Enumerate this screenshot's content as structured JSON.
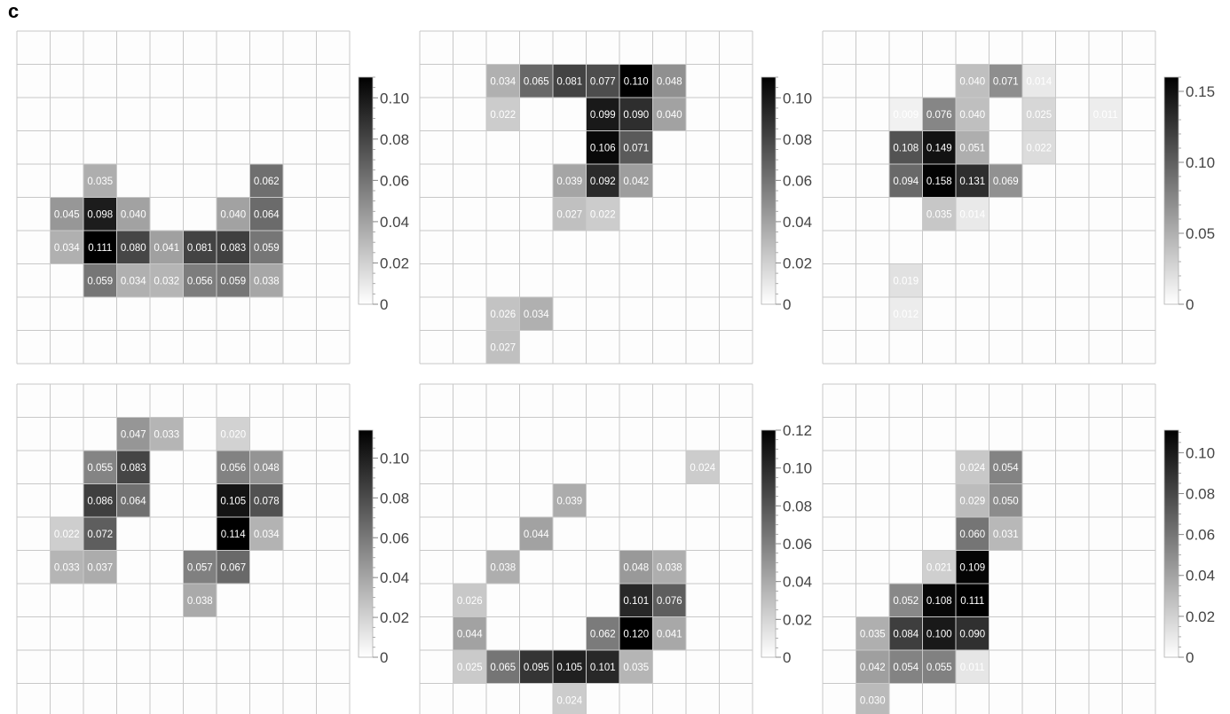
{
  "panel_label": "c",
  "chart_data": [
    {
      "type": "heatmap",
      "grid_size": 10,
      "colorscale": [
        "#ffffff",
        "#000000"
      ],
      "vmax": 0.11,
      "colorbar_ticks": [
        {
          "value": 0.1,
          "label": "0.10"
        },
        {
          "value": 0.08,
          "label": "0.08"
        },
        {
          "value": 0.06,
          "label": "0.06"
        },
        {
          "value": 0.04,
          "label": "0.04"
        },
        {
          "value": 0.02,
          "label": "0.02"
        },
        {
          "value": 0,
          "label": "0"
        }
      ],
      "cells": [
        {
          "row": 4,
          "col": 2,
          "label": "0.035"
        },
        {
          "row": 4,
          "col": 7,
          "label": "0.062"
        },
        {
          "row": 5,
          "col": 1,
          "label": "0.045"
        },
        {
          "row": 5,
          "col": 2,
          "label": "0.098"
        },
        {
          "row": 5,
          "col": 3,
          "label": "0.040"
        },
        {
          "row": 5,
          "col": 6,
          "label": "0.040"
        },
        {
          "row": 5,
          "col": 7,
          "label": "0.064"
        },
        {
          "row": 6,
          "col": 1,
          "label": "0.034"
        },
        {
          "row": 6,
          "col": 2,
          "label": "0.111"
        },
        {
          "row": 6,
          "col": 3,
          "label": "0.080"
        },
        {
          "row": 6,
          "col": 4,
          "label": "0.041"
        },
        {
          "row": 6,
          "col": 5,
          "label": "0.081"
        },
        {
          "row": 6,
          "col": 6,
          "label": "0.083"
        },
        {
          "row": 6,
          "col": 7,
          "label": "0.059"
        },
        {
          "row": 7,
          "col": 2,
          "label": "0.059"
        },
        {
          "row": 7,
          "col": 3,
          "label": "0.034"
        },
        {
          "row": 7,
          "col": 4,
          "label": "0.032"
        },
        {
          "row": 7,
          "col": 5,
          "label": "0.056"
        },
        {
          "row": 7,
          "col": 6,
          "label": "0.059"
        },
        {
          "row": 7,
          "col": 7,
          "label": "0.038"
        }
      ]
    },
    {
      "type": "heatmap",
      "grid_size": 10,
      "colorscale": [
        "#ffffff",
        "#000000"
      ],
      "vmax": 0.11,
      "colorbar_ticks": [
        {
          "value": 0.1,
          "label": "0.10"
        },
        {
          "value": 0.08,
          "label": "0.08"
        },
        {
          "value": 0.06,
          "label": "0.06"
        },
        {
          "value": 0.04,
          "label": "0.04"
        },
        {
          "value": 0.02,
          "label": "0.02"
        },
        {
          "value": 0,
          "label": "0"
        }
      ],
      "cells": [
        {
          "row": 1,
          "col": 2,
          "label": "0.034"
        },
        {
          "row": 1,
          "col": 3,
          "label": "0.065"
        },
        {
          "row": 1,
          "col": 4,
          "label": "0.081"
        },
        {
          "row": 1,
          "col": 5,
          "label": "0.077"
        },
        {
          "row": 1,
          "col": 6,
          "label": "0.110"
        },
        {
          "row": 1,
          "col": 7,
          "label": "0.048"
        },
        {
          "row": 2,
          "col": 2,
          "label": "0.022"
        },
        {
          "row": 2,
          "col": 5,
          "label": "0.099"
        },
        {
          "row": 2,
          "col": 6,
          "label": "0.090"
        },
        {
          "row": 2,
          "col": 7,
          "label": "0.040"
        },
        {
          "row": 3,
          "col": 5,
          "label": "0.106"
        },
        {
          "row": 3,
          "col": 6,
          "label": "0.071"
        },
        {
          "row": 4,
          "col": 4,
          "label": "0.039"
        },
        {
          "row": 4,
          "col": 5,
          "label": "0.092"
        },
        {
          "row": 4,
          "col": 6,
          "label": "0.042"
        },
        {
          "row": 5,
          "col": 4,
          "label": "0.027"
        },
        {
          "row": 5,
          "col": 5,
          "label": "0.022"
        },
        {
          "row": 8,
          "col": 2,
          "label": "0.026"
        },
        {
          "row": 8,
          "col": 3,
          "label": "0.034"
        },
        {
          "row": 9,
          "col": 2,
          "label": "0.027"
        }
      ]
    },
    {
      "type": "heatmap",
      "grid_size": 10,
      "colorscale": [
        "#ffffff",
        "#000000"
      ],
      "vmax": 0.16,
      "colorbar_ticks": [
        {
          "value": 0.15,
          "label": "0.15"
        },
        {
          "value": 0.1,
          "label": "0.10"
        },
        {
          "value": 0.05,
          "label": "0.05"
        },
        {
          "value": 0,
          "label": "0"
        }
      ],
      "cells": [
        {
          "row": 1,
          "col": 4,
          "label": "0.040"
        },
        {
          "row": 1,
          "col": 5,
          "label": "0.071"
        },
        {
          "row": 1,
          "col": 6,
          "label": "0.014"
        },
        {
          "row": 2,
          "col": 2,
          "label": "0.009"
        },
        {
          "row": 2,
          "col": 3,
          "label": "0.076"
        },
        {
          "row": 2,
          "col": 4,
          "label": "0.040"
        },
        {
          "row": 2,
          "col": 6,
          "label": "0.025"
        },
        {
          "row": 2,
          "col": 8,
          "label": "0.011"
        },
        {
          "row": 3,
          "col": 2,
          "label": "0.108"
        },
        {
          "row": 3,
          "col": 3,
          "label": "0.149"
        },
        {
          "row": 3,
          "col": 4,
          "label": "0.051"
        },
        {
          "row": 3,
          "col": 6,
          "label": "0.022"
        },
        {
          "row": 4,
          "col": 2,
          "label": "0.094"
        },
        {
          "row": 4,
          "col": 3,
          "label": "0.158"
        },
        {
          "row": 4,
          "col": 4,
          "label": "0.131"
        },
        {
          "row": 4,
          "col": 5,
          "label": "0.069"
        },
        {
          "row": 5,
          "col": 3,
          "label": "0.035"
        },
        {
          "row": 5,
          "col": 4,
          "label": "0.014"
        },
        {
          "row": 7,
          "col": 2,
          "label": "0.019"
        },
        {
          "row": 8,
          "col": 2,
          "label": "0.012"
        }
      ]
    },
    {
      "type": "heatmap",
      "grid_size": 10,
      "colorscale": [
        "#ffffff",
        "#000000"
      ],
      "vmax": 0.114,
      "colorbar_ticks": [
        {
          "value": 0.1,
          "label": "0.10"
        },
        {
          "value": 0.08,
          "label": "0.08"
        },
        {
          "value": 0.06,
          "label": "0.06"
        },
        {
          "value": 0.04,
          "label": "0.04"
        },
        {
          "value": 0.02,
          "label": "0.02"
        },
        {
          "value": 0,
          "label": "0"
        }
      ],
      "cells": [
        {
          "row": 1,
          "col": 3,
          "label": "0.047"
        },
        {
          "row": 1,
          "col": 4,
          "label": "0.033"
        },
        {
          "row": 1,
          "col": 6,
          "label": "0.020"
        },
        {
          "row": 2,
          "col": 2,
          "label": "0.055"
        },
        {
          "row": 2,
          "col": 3,
          "label": "0.083"
        },
        {
          "row": 2,
          "col": 6,
          "label": "0.056"
        },
        {
          "row": 2,
          "col": 7,
          "label": "0.048"
        },
        {
          "row": 3,
          "col": 2,
          "label": "0.086"
        },
        {
          "row": 3,
          "col": 3,
          "label": "0.064"
        },
        {
          "row": 3,
          "col": 6,
          "label": "0.105"
        },
        {
          "row": 3,
          "col": 7,
          "label": "0.078"
        },
        {
          "row": 4,
          "col": 1,
          "label": "0.022"
        },
        {
          "row": 4,
          "col": 2,
          "label": "0.072"
        },
        {
          "row": 4,
          "col": 6,
          "label": "0.114"
        },
        {
          "row": 4,
          "col": 7,
          "label": "0.034"
        },
        {
          "row": 5,
          "col": 1,
          "label": "0.033"
        },
        {
          "row": 5,
          "col": 2,
          "label": "0.037"
        },
        {
          "row": 5,
          "col": 5,
          "label": "0.057"
        },
        {
          "row": 5,
          "col": 6,
          "label": "0.067"
        },
        {
          "row": 6,
          "col": 5,
          "label": "0.038"
        }
      ]
    },
    {
      "type": "heatmap",
      "grid_size": 10,
      "colorscale": [
        "#ffffff",
        "#000000"
      ],
      "vmax": 0.12,
      "colorbar_ticks": [
        {
          "value": 0.12,
          "label": "0.12"
        },
        {
          "value": 0.1,
          "label": "0.10"
        },
        {
          "value": 0.08,
          "label": "0.08"
        },
        {
          "value": 0.06,
          "label": "0.06"
        },
        {
          "value": 0.04,
          "label": "0.04"
        },
        {
          "value": 0.02,
          "label": "0.02"
        },
        {
          "value": 0,
          "label": "0"
        }
      ],
      "cells": [
        {
          "row": 2,
          "col": 8,
          "label": "0.024"
        },
        {
          "row": 3,
          "col": 4,
          "label": "0.039"
        },
        {
          "row": 4,
          "col": 3,
          "label": "0.044"
        },
        {
          "row": 5,
          "col": 2,
          "label": "0.038"
        },
        {
          "row": 5,
          "col": 6,
          "label": "0.048"
        },
        {
          "row": 5,
          "col": 7,
          "label": "0.038"
        },
        {
          "row": 6,
          "col": 1,
          "label": "0.026"
        },
        {
          "row": 6,
          "col": 6,
          "label": "0.101"
        },
        {
          "row": 6,
          "col": 7,
          "label": "0.076"
        },
        {
          "row": 7,
          "col": 1,
          "label": "0.044"
        },
        {
          "row": 7,
          "col": 5,
          "label": "0.062"
        },
        {
          "row": 7,
          "col": 6,
          "label": "0.120"
        },
        {
          "row": 7,
          "col": 7,
          "label": "0.041"
        },
        {
          "row": 8,
          "col": 1,
          "label": "0.025"
        },
        {
          "row": 8,
          "col": 2,
          "label": "0.065"
        },
        {
          "row": 8,
          "col": 3,
          "label": "0.095"
        },
        {
          "row": 8,
          "col": 4,
          "label": "0.105"
        },
        {
          "row": 8,
          "col": 5,
          "label": "0.101"
        },
        {
          "row": 8,
          "col": 6,
          "label": "0.035"
        },
        {
          "row": 9,
          "col": 4,
          "label": "0.024"
        }
      ]
    },
    {
      "type": "heatmap",
      "grid_size": 10,
      "colorscale": [
        "#ffffff",
        "#000000"
      ],
      "vmax": 0.111,
      "colorbar_ticks": [
        {
          "value": 0.1,
          "label": "0.10"
        },
        {
          "value": 0.08,
          "label": "0.08"
        },
        {
          "value": 0.06,
          "label": "0.06"
        },
        {
          "value": 0.04,
          "label": "0.04"
        },
        {
          "value": 0.02,
          "label": "0.02"
        },
        {
          "value": 0,
          "label": "0"
        }
      ],
      "cells": [
        {
          "row": 2,
          "col": 4,
          "label": "0.024"
        },
        {
          "row": 2,
          "col": 5,
          "label": "0.054"
        },
        {
          "row": 3,
          "col": 4,
          "label": "0.029"
        },
        {
          "row": 3,
          "col": 5,
          "label": "0.050"
        },
        {
          "row": 4,
          "col": 4,
          "label": "0.060"
        },
        {
          "row": 4,
          "col": 5,
          "label": "0.031"
        },
        {
          "row": 5,
          "col": 3,
          "label": "0.021"
        },
        {
          "row": 5,
          "col": 4,
          "label": "0.109"
        },
        {
          "row": 6,
          "col": 2,
          "label": "0.052"
        },
        {
          "row": 6,
          "col": 3,
          "label": "0.108"
        },
        {
          "row": 6,
          "col": 4,
          "label": "0.111"
        },
        {
          "row": 7,
          "col": 1,
          "label": "0.035"
        },
        {
          "row": 7,
          "col": 2,
          "label": "0.084"
        },
        {
          "row": 7,
          "col": 3,
          "label": "0.100"
        },
        {
          "row": 7,
          "col": 4,
          "label": "0.090"
        },
        {
          "row": 8,
          "col": 1,
          "label": "0.042"
        },
        {
          "row": 8,
          "col": 2,
          "label": "0.054"
        },
        {
          "row": 8,
          "col": 3,
          "label": "0.055"
        },
        {
          "row": 8,
          "col": 4,
          "label": "0.011"
        },
        {
          "row": 9,
          "col": 1,
          "label": "0.030"
        }
      ]
    }
  ]
}
